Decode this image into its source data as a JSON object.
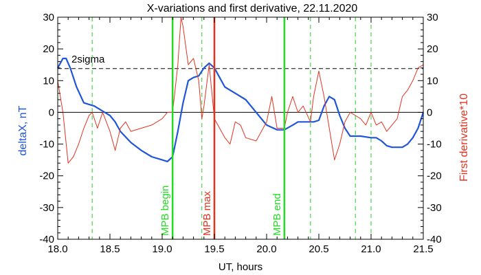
{
  "chart_data": {
    "type": "line",
    "title": "X-variations and first derivative, 22.11.2020",
    "xlabel": "UT, hours",
    "ylabel_left": "deltaX, nT",
    "ylabel_right": "First derivative*10",
    "xlim": [
      18.0,
      21.5
    ],
    "ylim": [
      -40,
      30
    ],
    "x_ticks": [
      "18.0",
      "18.5",
      "19.0",
      "19.5",
      "20.0",
      "20.5",
      "21.0",
      "21.5"
    ],
    "y_ticks": [
      "-40",
      "-30",
      "-20",
      "-10",
      "0",
      "10",
      "20",
      "30"
    ],
    "threshold": {
      "label": "2sigma",
      "value": 13.8
    },
    "event_lines": [
      {
        "label": "MPB begin",
        "x": 19.1,
        "color": "#22dd22"
      },
      {
        "label": "MPB max",
        "x": 19.5,
        "color": "#e2331f"
      },
      {
        "label": "MPB end",
        "x": 20.17,
        "color": "#22dd22"
      }
    ],
    "dashed_lines_x": [
      18.33,
      19.38,
      20.42,
      20.85,
      21.0
    ],
    "series": [
      {
        "axis": "left",
        "color": "#1f55d8",
        "x": [
          18.0,
          18.05,
          18.08,
          18.12,
          18.18,
          18.25,
          18.3,
          18.35,
          18.4,
          18.45,
          18.5,
          18.55,
          18.6,
          18.7,
          18.8,
          18.9,
          19.0,
          19.05,
          19.1,
          19.15,
          19.2,
          19.25,
          19.3,
          19.35,
          19.4,
          19.45,
          19.5,
          19.55,
          19.6,
          19.7,
          19.8,
          19.9,
          20.0,
          20.1,
          20.17,
          20.25,
          20.3,
          20.4,
          20.45,
          20.5,
          20.55,
          20.6,
          20.65,
          20.7,
          20.75,
          20.8,
          20.85,
          20.9,
          21.0,
          21.05,
          21.1,
          21.15,
          21.2,
          21.3,
          21.35,
          21.4,
          21.45,
          21.5
        ],
        "values": [
          14,
          17,
          17,
          14,
          8,
          3,
          2.5,
          2,
          1,
          0,
          -1,
          -3,
          -6,
          -9.5,
          -12,
          -14,
          -15,
          -15.5,
          -14,
          -6,
          3,
          10,
          11,
          11.5,
          14,
          15.5,
          14,
          11,
          8,
          6,
          4,
          0,
          -4,
          -5.5,
          -5.5,
          -4,
          -3,
          -3,
          -3,
          -2.5,
          2,
          5,
          4,
          -1,
          -5,
          -7.5,
          -7.5,
          -7.5,
          -8,
          -8,
          -9,
          -10.5,
          -11,
          -11,
          -10,
          -8,
          -5,
          0
        ]
      },
      {
        "axis": "right",
        "color": "#e2331f",
        "x": [
          18.0,
          18.05,
          18.1,
          18.15,
          18.2,
          18.25,
          18.3,
          18.33,
          18.38,
          18.43,
          18.5,
          18.55,
          18.6,
          18.65,
          18.7,
          18.8,
          18.9,
          19.0,
          19.05,
          19.1,
          19.15,
          19.18,
          19.2,
          19.25,
          19.3,
          19.35,
          19.38,
          19.4,
          19.45,
          19.5,
          19.55,
          19.6,
          19.65,
          19.7,
          19.75,
          19.8,
          19.9,
          20.0,
          20.05,
          20.1,
          20.17,
          20.2,
          20.25,
          20.3,
          20.35,
          20.42,
          20.45,
          20.5,
          20.55,
          20.6,
          20.65,
          20.7,
          20.75,
          20.8,
          20.85,
          20.9,
          20.95,
          21.0,
          21.05,
          21.1,
          21.15,
          21.2,
          21.25,
          21.3,
          21.35,
          21.4,
          21.45,
          21.5
        ],
        "values": [
          10,
          0,
          -16,
          -14,
          -10,
          -5,
          -1,
          0,
          -5,
          0,
          -6,
          -12,
          -5,
          -3,
          -6,
          -5,
          -4,
          -2,
          0,
          0,
          15,
          30,
          27,
          15,
          17,
          10,
          -2,
          2,
          15,
          -2,
          -5,
          -8,
          -10,
          -3,
          -4,
          -8,
          -9,
          -3,
          5,
          -5,
          -5,
          0,
          5,
          0,
          2,
          -3,
          5,
          13,
          5,
          -5,
          -15,
          -10,
          -3,
          0,
          -1,
          -2,
          -4,
          0,
          -4,
          -3,
          -6,
          -4,
          -2,
          5,
          7,
          10,
          14,
          15
        ]
      }
    ]
  }
}
